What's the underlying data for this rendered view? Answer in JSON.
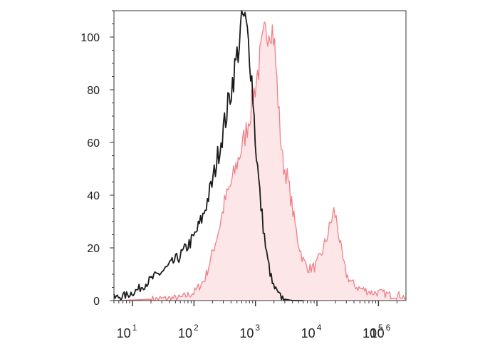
{
  "chart_data": {
    "type": "area",
    "title": "",
    "xlabel": "",
    "ylabel": "",
    "x_scale": "log",
    "xlim": [
      5,
      280000
    ],
    "ylim": [
      0,
      110
    ],
    "grid": false,
    "legend": "none",
    "yticks": [
      "0",
      "20",
      "40",
      "60",
      "80",
      "100"
    ],
    "xticks": [
      {
        "base": "10",
        "exp": "1",
        "value": 10
      },
      {
        "base": "10",
        "exp": "2",
        "value": 100
      },
      {
        "base": "10",
        "exp": "3",
        "value": 1000
      },
      {
        "base": "10",
        "exp": "4",
        "value": 10000
      },
      {
        "base": "10",
        "exp": "5",
        "value": 100000
      },
      {
        "base": "10",
        "exp": "6",
        "value": 1000000
      }
    ],
    "series": [
      {
        "color": "#1a1a1a",
        "fill": "none",
        "x": [
          5,
          8,
          12,
          20,
          35,
          60,
          100,
          140,
          200,
          260,
          320,
          400,
          480,
          560,
          620,
          700,
          800,
          900,
          1000,
          1200,
          1500,
          1900,
          2400,
          3000,
          4000,
          6000
        ],
        "y": [
          1,
          2,
          4,
          8,
          12,
          17,
          24,
          32,
          45,
          58,
          68,
          80,
          90,
          100,
          108,
          104,
          95,
          80,
          60,
          38,
          18,
          6,
          2,
          0.5,
          0,
          0
        ]
      },
      {
        "color": "#f08088",
        "fill": "#fde6e8",
        "x": [
          5,
          20,
          60,
          100,
          150,
          200,
          260,
          320,
          400,
          500,
          600,
          700,
          800,
          900,
          1000,
          1200,
          1400,
          1600,
          1800,
          2000,
          2200,
          2500,
          2800,
          3200,
          3700,
          4300,
          5000,
          6000,
          7500,
          9500,
          12000,
          14500,
          17000,
          19000,
          21000,
          23000,
          26000,
          30000,
          36000,
          45000,
          60000,
          80000,
          110000,
          160000,
          230000,
          280000
        ],
        "y": [
          0,
          0.5,
          1,
          3,
          8,
          18,
          28,
          38,
          44,
          52,
          58,
          64,
          70,
          76,
          82,
          92,
          100,
          104,
          105,
          100,
          85,
          65,
          52,
          48,
          40,
          30,
          22,
          15,
          12,
          13,
          18,
          24,
          30,
          34,
          30,
          24,
          16,
          10,
          7,
          5,
          4,
          3,
          3,
          2,
          2,
          1
        ]
      }
    ]
  }
}
